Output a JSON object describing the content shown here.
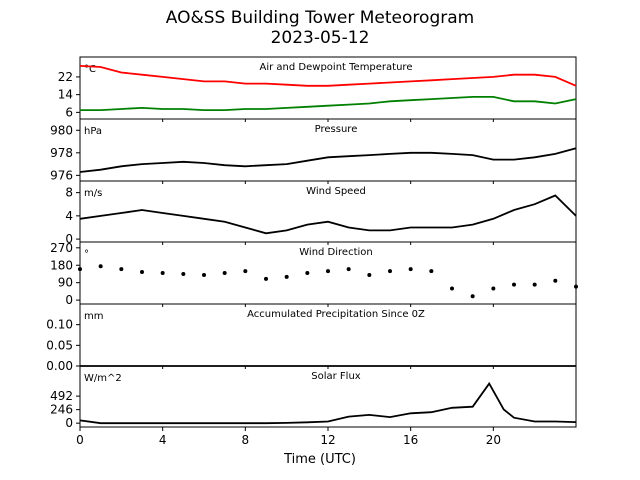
{
  "figure": {
    "title": "AO&SS Building Tower Meteorogram",
    "subtitle": "2023-05-12",
    "xlabel": "Time (UTC)"
  },
  "chart_data": [
    {
      "type": "line",
      "title": "Air and Dewpoint Temperature",
      "ylabel": "°C",
      "xlim": [
        0,
        24
      ],
      "ylim": [
        3,
        31
      ],
      "yticks": [
        6,
        14,
        22
      ],
      "series": [
        {
          "color": "#ff0000",
          "x": [
            0,
            1,
            2,
            3,
            4,
            5,
            6,
            7,
            8,
            9,
            10,
            11,
            12,
            13,
            14,
            15,
            16,
            17,
            18,
            19,
            20,
            21,
            22,
            23,
            24
          ],
          "values": [
            27,
            26.5,
            24,
            23,
            22,
            21,
            20,
            20,
            19,
            19,
            18.5,
            18,
            18,
            18.5,
            19,
            19.5,
            20,
            20.5,
            21,
            21.5,
            22,
            23,
            23,
            22,
            18
          ]
        },
        {
          "color": "#008000",
          "x": [
            0,
            1,
            2,
            3,
            4,
            5,
            6,
            7,
            8,
            9,
            10,
            11,
            12,
            13,
            14,
            15,
            16,
            17,
            18,
            19,
            20,
            21,
            22,
            23,
            24
          ],
          "values": [
            7,
            7,
            7.5,
            8,
            7.5,
            7.5,
            7,
            7,
            7.5,
            7.5,
            8,
            8.5,
            9,
            9.5,
            10,
            11,
            11.5,
            12,
            12.5,
            13,
            13,
            11,
            11,
            10,
            12
          ]
        }
      ]
    },
    {
      "type": "line",
      "title": "Pressure",
      "ylabel": "hPa",
      "xlim": [
        0,
        24
      ],
      "ylim": [
        975.5,
        981
      ],
      "yticks": [
        976,
        978,
        980
      ],
      "series": [
        {
          "color": "#000000",
          "x": [
            0,
            1,
            2,
            3,
            4,
            5,
            6,
            7,
            8,
            9,
            10,
            11,
            12,
            13,
            14,
            15,
            16,
            17,
            18,
            19,
            20,
            21,
            22,
            23,
            24
          ],
          "values": [
            976.3,
            976.5,
            976.8,
            977.0,
            977.1,
            977.2,
            977.1,
            976.9,
            976.8,
            976.9,
            977.0,
            977.3,
            977.6,
            977.7,
            977.8,
            977.9,
            978.0,
            978.0,
            977.9,
            977.8,
            977.4,
            977.4,
            977.6,
            977.9,
            978.4
          ]
        }
      ]
    },
    {
      "type": "line",
      "title": "Wind Speed",
      "ylabel": "m/s",
      "xlim": [
        0,
        24
      ],
      "ylim": [
        -0.5,
        10
      ],
      "yticks": [
        0,
        4,
        8
      ],
      "series": [
        {
          "color": "#000000",
          "x": [
            0,
            1,
            2,
            3,
            4,
            5,
            6,
            7,
            8,
            9,
            10,
            11,
            12,
            13,
            14,
            15,
            16,
            17,
            18,
            19,
            20,
            21,
            22,
            23,
            24
          ],
          "values": [
            3.5,
            4,
            4.5,
            5,
            4.5,
            4,
            3.5,
            3,
            2,
            1,
            1.5,
            2.5,
            3,
            2,
            1.5,
            1.5,
            2,
            2,
            2,
            2.5,
            3.5,
            5,
            6,
            7.5,
            4
          ]
        }
      ]
    },
    {
      "type": "scatter",
      "title": "Wind Direction",
      "ylabel": "°",
      "xlim": [
        0,
        24
      ],
      "ylim": [
        -20,
        300
      ],
      "yticks": [
        0,
        90,
        180,
        270
      ],
      "series": [
        {
          "color": "#000000",
          "x": [
            0,
            1,
            2,
            3,
            4,
            5,
            6,
            7,
            8,
            9,
            10,
            11,
            12,
            13,
            14,
            15,
            16,
            17,
            18,
            19,
            20,
            21,
            22,
            23,
            24
          ],
          "values": [
            160,
            175,
            160,
            145,
            140,
            135,
            130,
            140,
            150,
            110,
            120,
            140,
            150,
            160,
            130,
            150,
            160,
            150,
            60,
            20,
            60,
            80,
            80,
            100,
            70
          ]
        }
      ]
    },
    {
      "type": "line",
      "title": "Accumulated Precipitation Since 0Z",
      "ylabel": "mm",
      "xlim": [
        0,
        24
      ],
      "ylim": [
        0,
        0.15
      ],
      "yticks": [
        0.0,
        0.05,
        0.1
      ],
      "series": [
        {
          "color": "#000000",
          "x": [
            0,
            24
          ],
          "values": [
            0,
            0
          ]
        }
      ]
    },
    {
      "type": "line",
      "title": "Solar Flux",
      "ylabel": "W/m^2",
      "xlim": [
        0,
        24
      ],
      "ylim": [
        -70,
        1040
      ],
      "yticks": [
        0,
        246,
        492
      ],
      "series": [
        {
          "color": "#000000",
          "x": [
            0,
            1,
            2,
            3,
            4,
            5,
            6,
            7,
            8,
            9,
            10,
            11,
            12,
            13,
            14,
            15,
            16,
            17,
            18,
            19,
            19.8,
            20.5,
            21,
            22,
            23,
            24
          ],
          "values": [
            50,
            0,
            0,
            0,
            0,
            0,
            0,
            0,
            0,
            0,
            5,
            15,
            30,
            120,
            150,
            110,
            180,
            200,
            280,
            300,
            720,
            250,
            100,
            30,
            30,
            20
          ]
        }
      ]
    }
  ],
  "xaxis": {
    "ticks": [
      0,
      4,
      8,
      12,
      16,
      20
    ],
    "tick_labels": [
      "0",
      "4",
      "8",
      "12",
      "16",
      "20"
    ]
  }
}
